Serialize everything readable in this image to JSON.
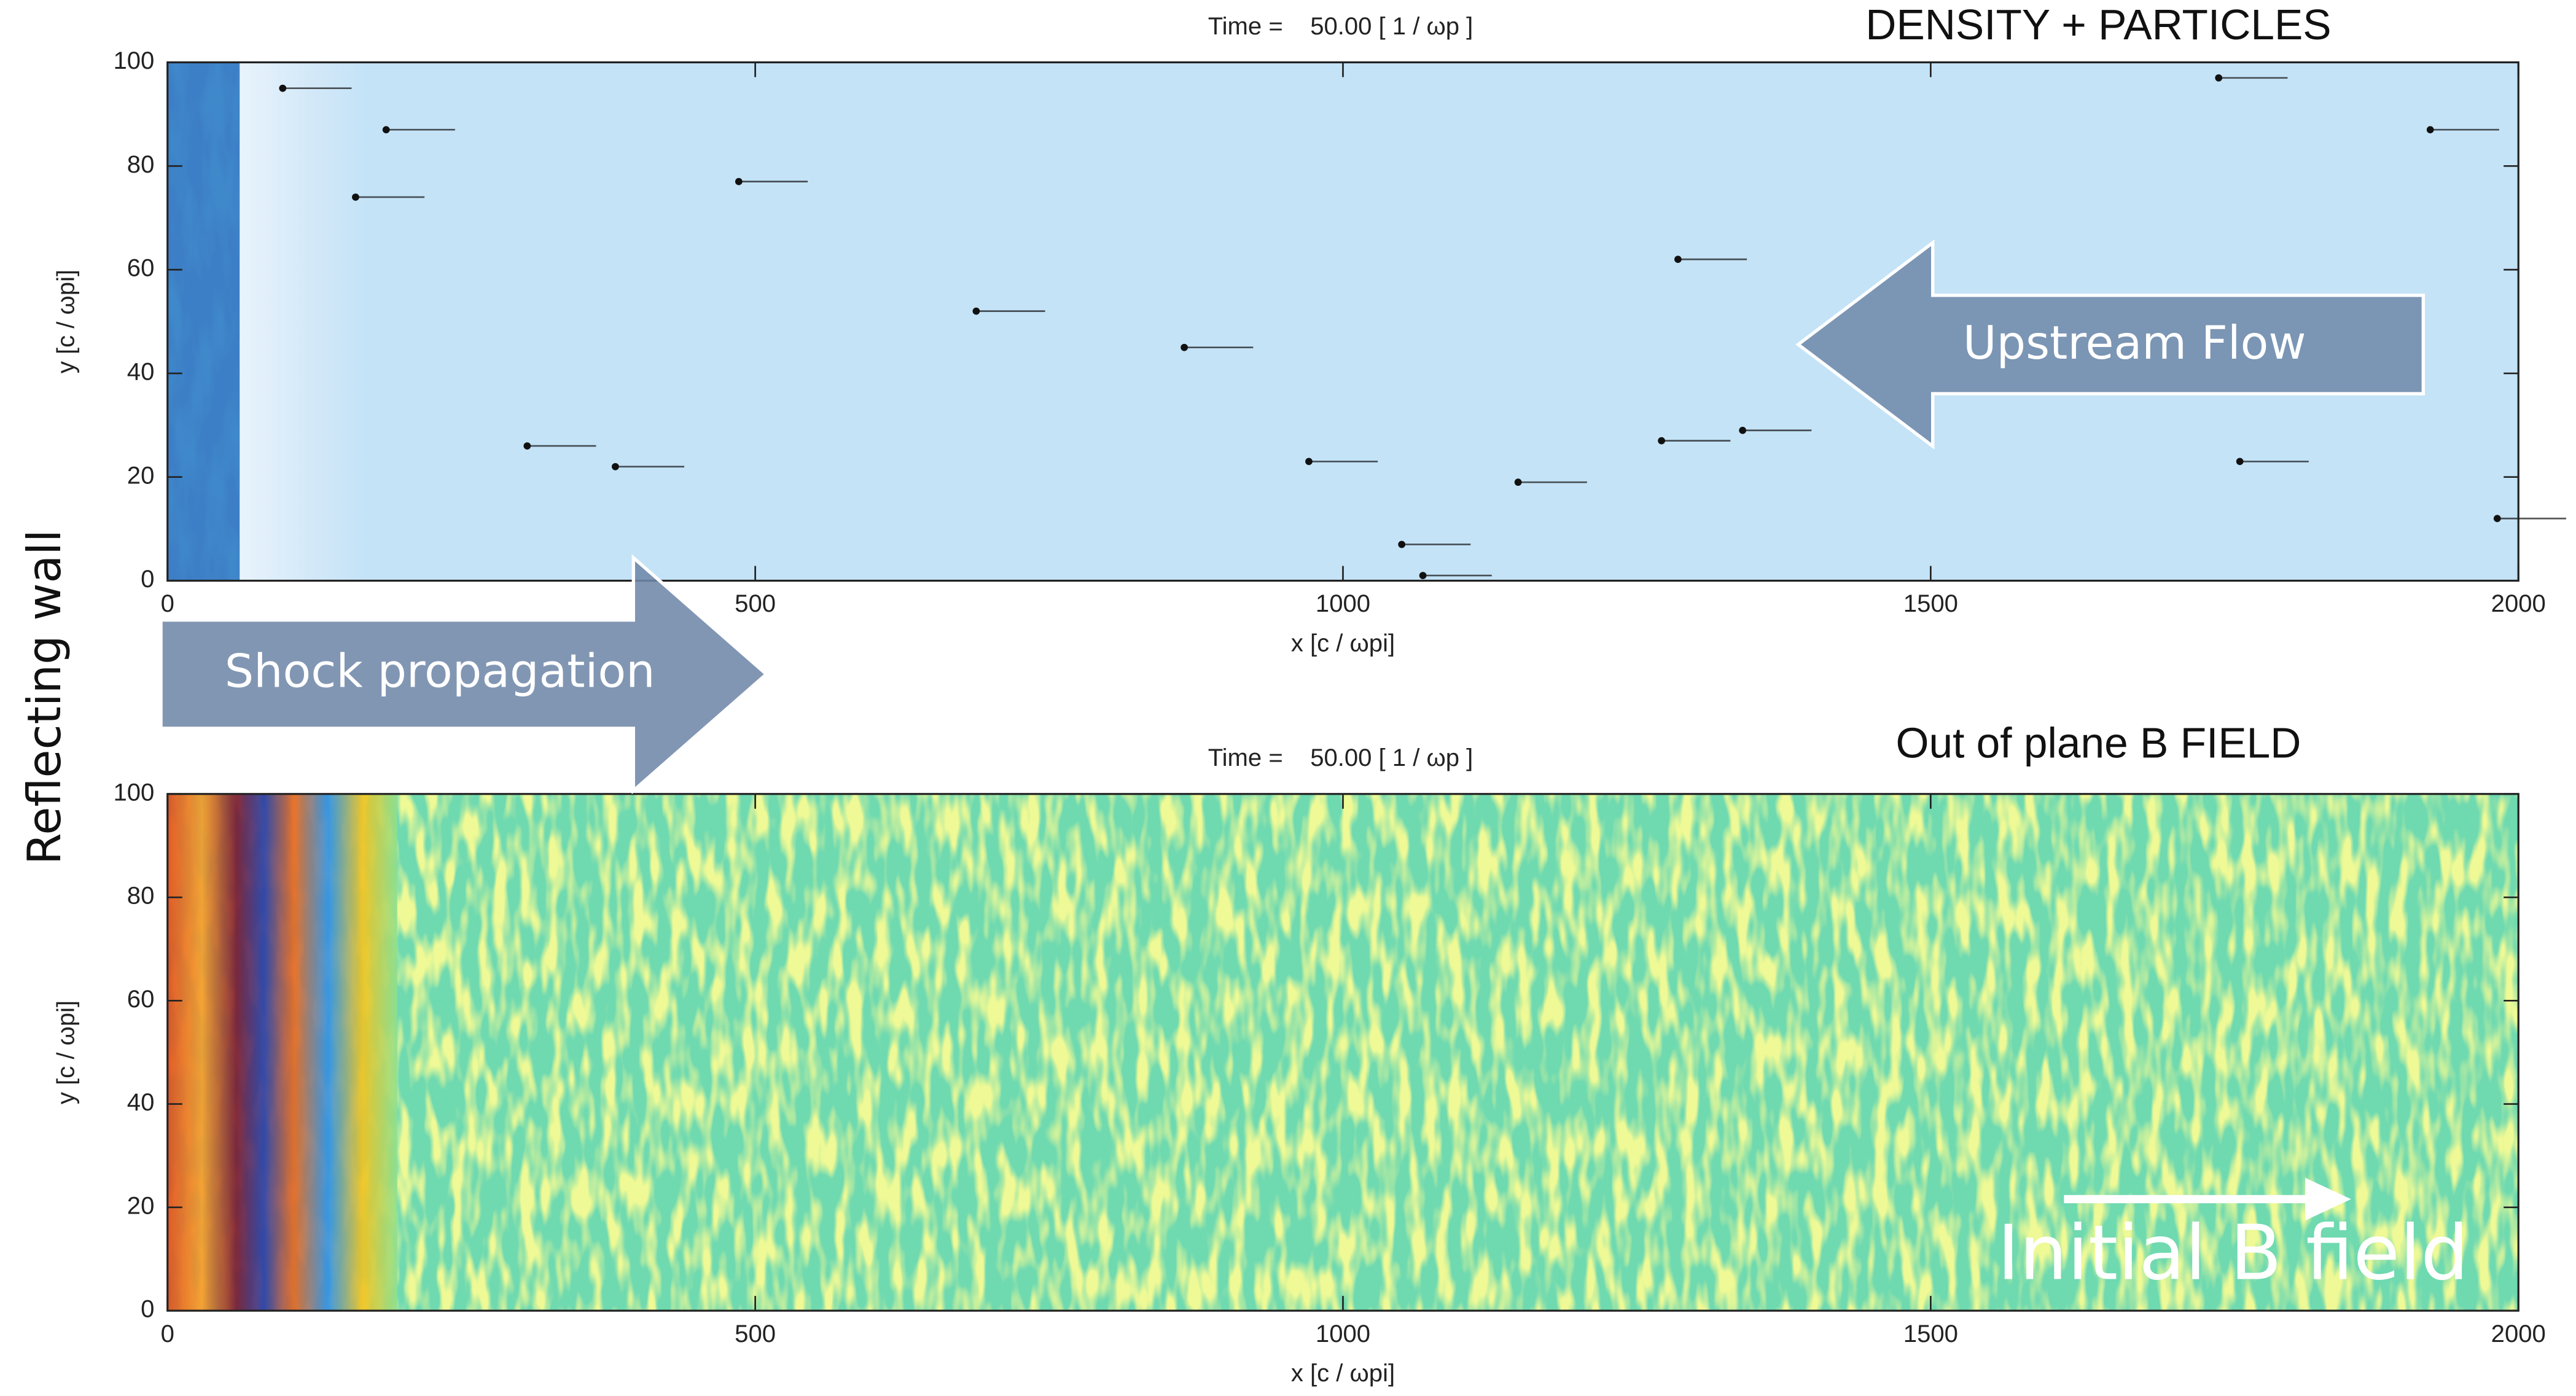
{
  "chart_data": [
    {
      "type": "scatter",
      "title": "DENSITY + PARTICLES",
      "time_label": "Time =    50.00 [ 1 / ωp ]",
      "x_label": "x [c / ωpi]",
      "y_label": "y [c / ωpi]",
      "x": [
        98,
        160,
        186,
        306,
        381,
        486,
        688,
        865,
        971,
        1050,
        1068,
        1149,
        1271,
        1285,
        1340,
        1745,
        1763,
        1925,
        1982
      ],
      "y": [
        95,
        74,
        87,
        26,
        22,
        77,
        52,
        45,
        23,
        7,
        1,
        19,
        27,
        62,
        29,
        97,
        23,
        87,
        12
      ],
      "color": "#111111",
      "xlim": [
        0,
        2000
      ],
      "xticks": [
        0,
        500,
        1000,
        1500,
        2000
      ],
      "ylim": [
        0,
        100
      ],
      "yticks": [
        0,
        20,
        40,
        60,
        80,
        100
      ]
    },
    {
      "type": "heatmap",
      "title": "Out of plane B FIELD",
      "time_label": "Time =    50.00 [ 1 / ωp ]",
      "x_label": "x [c / ωpi]",
      "y_label": "y [c / ωpi]",
      "xlim": [
        0,
        2000
      ],
      "xticks": [
        0,
        500,
        1000,
        1500,
        2000
      ],
      "ylim": [
        0,
        100
      ],
      "yticks": [
        0,
        20,
        40,
        60,
        80,
        100
      ]
    }
  ],
  "annotations": {
    "upstream": "Upstream Flow",
    "shock": "Shock propagation",
    "wall": "Reflecting wall",
    "bfield": "Initial B field"
  }
}
